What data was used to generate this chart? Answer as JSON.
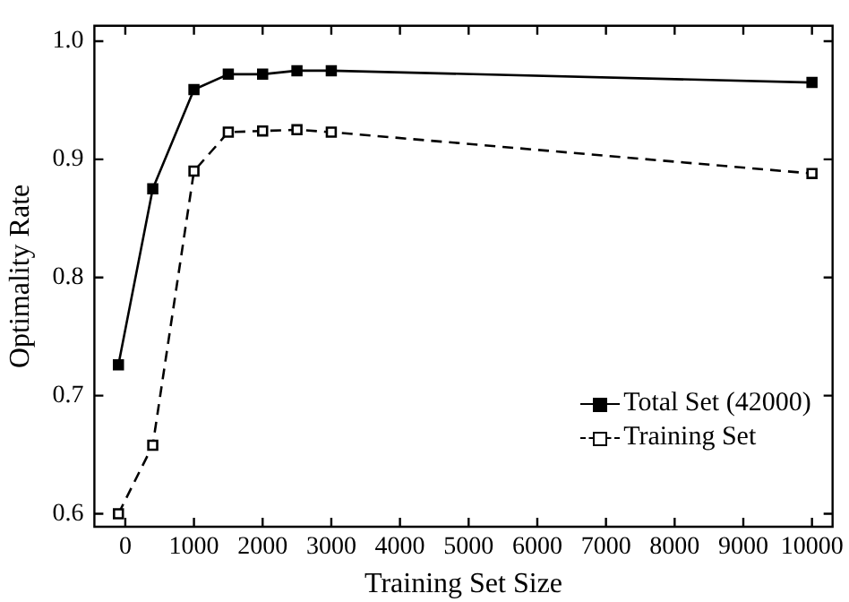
{
  "chart_data": {
    "type": "line",
    "xlabel": "Training Set Size",
    "ylabel": "Optimality Rate",
    "xlim": [
      -450,
      10300
    ],
    "xticks": [
      0,
      1000,
      2000,
      3000,
      4000,
      5000,
      6000,
      7000,
      8000,
      9000,
      10000
    ],
    "ylim": [
      0.589,
      1.013
    ],
    "yticks": [
      0.6,
      0.7,
      0.8,
      0.9,
      {
        "value": 1,
        "label": "1.0"
      }
    ],
    "legend": "bottom right",
    "marker": "square",
    "grid": false,
    "series": [
      {
        "name": "Total Set (42000)",
        "color": "#000000",
        "line_style": "solid",
        "x": [
          -100,
          400,
          1000,
          1500,
          2000,
          2500,
          3000,
          10000
        ],
        "values": [
          0.726,
          0.875,
          0.959,
          0.972,
          0.972,
          0.975,
          0.975,
          0.965
        ]
      },
      {
        "name": "Training Set",
        "color": "#000000",
        "line_style": "dashed",
        "x": [
          -100,
          400,
          1000,
          1500,
          2000,
          2500,
          3000,
          10000
        ],
        "values": [
          0.6,
          0.658,
          0.89,
          0.923,
          0.924,
          0.925,
          0.923,
          0.888
        ]
      }
    ]
  }
}
